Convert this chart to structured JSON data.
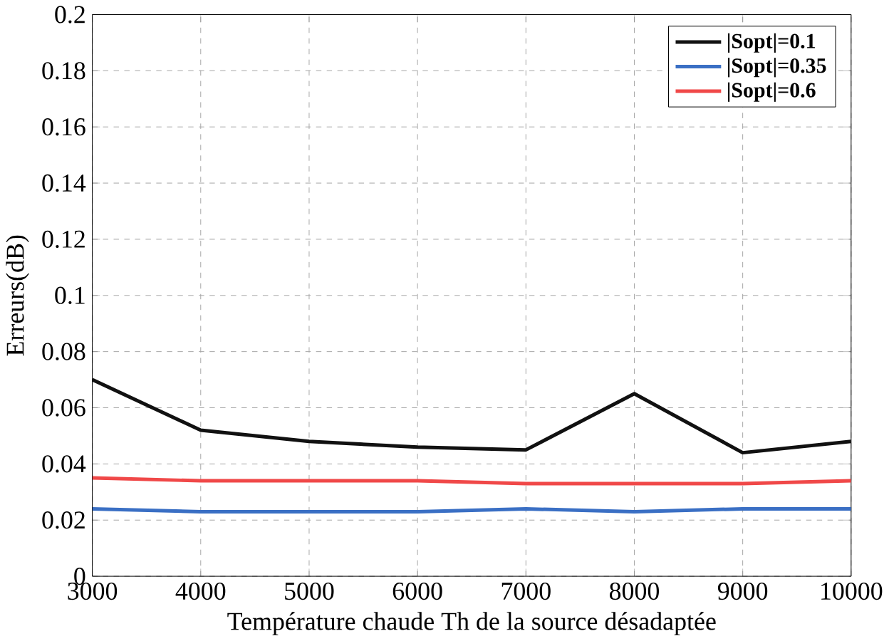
{
  "chart_data": {
    "type": "line",
    "xlabel": "Température chaude Th de la source désadaptée",
    "ylabel": "Erreurs(dB)",
    "x": [
      3000,
      4000,
      5000,
      6000,
      7000,
      8000,
      9000,
      10000
    ],
    "series": [
      {
        "name": "|Sopt|=0.1",
        "color": "#111111",
        "values": [
          0.07,
          0.052,
          0.048,
          0.046,
          0.045,
          0.065,
          0.044,
          0.048
        ]
      },
      {
        "name": "|Sopt|=0.35",
        "color": "#3a6fc4",
        "values": [
          0.024,
          0.023,
          0.023,
          0.023,
          0.024,
          0.023,
          0.024,
          0.024
        ]
      },
      {
        "name": "|Sopt|=0.6",
        "color": "#f04848",
        "values": [
          0.035,
          0.034,
          0.034,
          0.034,
          0.033,
          0.033,
          0.033,
          0.034
        ]
      }
    ],
    "xlim": [
      3000,
      10000
    ],
    "ylim": [
      0,
      0.2
    ],
    "xticks": [
      3000,
      4000,
      5000,
      6000,
      7000,
      8000,
      9000,
      10000
    ],
    "yticks": [
      0,
      0.02,
      0.04,
      0.06,
      0.08,
      0.1,
      0.12,
      0.14,
      0.16,
      0.18,
      0.2
    ],
    "grid": true,
    "legend": "top right",
    "line_style": "solid",
    "marker": "none"
  }
}
